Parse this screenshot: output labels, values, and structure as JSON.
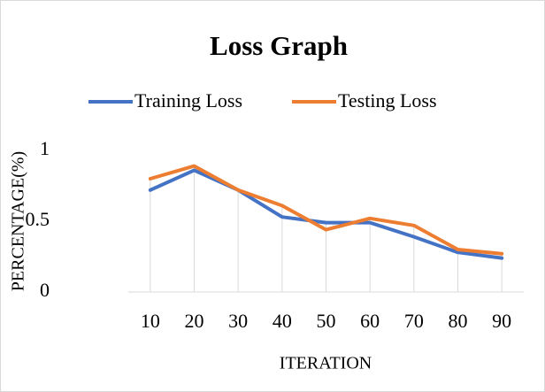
{
  "chart_data": {
    "type": "line",
    "title": "Loss Graph",
    "categories": [
      "10",
      "20",
      "30",
      "40",
      "50",
      "60",
      "70",
      "80",
      "90"
    ],
    "series": [
      {
        "name": "Training Loss",
        "color": "#4472c4",
        "values": [
          0.72,
          0.86,
          0.72,
          0.53,
          0.49,
          0.49,
          0.39,
          0.28,
          0.24
        ]
      },
      {
        "name": "Testing Loss",
        "color": "#ed7d31",
        "values": [
          0.8,
          0.89,
          0.72,
          0.61,
          0.44,
          0.52,
          0.47,
          0.3,
          0.27
        ]
      }
    ],
    "ylim": [
      0,
      1
    ],
    "yticks": [
      0,
      0.5,
      1
    ],
    "xlabel": "ITERATION",
    "ylabel": "PERCENTAGE(%)",
    "drop_lines": true,
    "legend": "top"
  }
}
